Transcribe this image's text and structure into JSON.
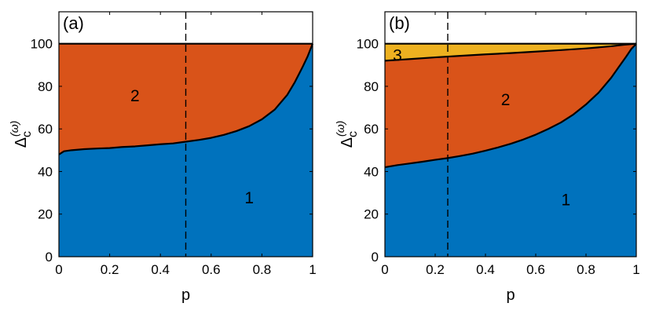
{
  "chart_data": [
    {
      "type": "area",
      "panel_label": "(a)",
      "xlabel": "p",
      "ylabel": "Δ",
      "ylabel_subscript": "c",
      "ylabel_superscript": "(ω)",
      "xlim": [
        0,
        1
      ],
      "ylim": [
        0,
        115
      ],
      "xticks": [
        "0",
        "0.2",
        "0.4",
        "0.6",
        "0.8",
        "1"
      ],
      "yticks": [
        "0",
        "20",
        "40",
        "60",
        "80",
        "100"
      ],
      "dashed_vline_x": 0.5,
      "colors": {
        "region1": "#0072BD",
        "region2": "#D95319",
        "region3": "#EDB120"
      },
      "regions": [
        {
          "name": "1",
          "label_at": [
            0.75,
            28
          ]
        },
        {
          "name": "2",
          "label_at": [
            0.3,
            76
          ]
        }
      ],
      "boundaries": [
        {
          "name": "1-2",
          "x": [
            0,
            0.02,
            0.05,
            0.1,
            0.15,
            0.2,
            0.25,
            0.3,
            0.35,
            0.4,
            0.45,
            0.5,
            0.55,
            0.6,
            0.65,
            0.7,
            0.75,
            0.8,
            0.85,
            0.9,
            0.93,
            0.96,
            0.98,
            1.0
          ],
          "y": [
            48,
            49.5,
            50,
            50.5,
            50.8,
            51,
            51.5,
            51.8,
            52.3,
            52.8,
            53.2,
            54,
            54.8,
            55.8,
            57.2,
            59,
            61.3,
            64.5,
            69,
            76,
            82,
            89,
            94,
            100
          ]
        },
        {
          "name": "2-top",
          "x": [
            0,
            1
          ],
          "y": [
            100,
            100
          ]
        }
      ]
    },
    {
      "type": "area",
      "panel_label": "(b)",
      "xlabel": "p",
      "ylabel": "Δ",
      "ylabel_subscript": "c",
      "ylabel_superscript": "(ω)",
      "xlim": [
        0,
        1
      ],
      "ylim": [
        0,
        115
      ],
      "xticks": [
        "0",
        "0.2",
        "0.4",
        "0.6",
        "0.8",
        "1"
      ],
      "yticks": [
        "0",
        "20",
        "40",
        "60",
        "80",
        "100"
      ],
      "dashed_vline_x": 0.25,
      "colors": {
        "region1": "#0072BD",
        "region2": "#D95319",
        "region3": "#EDB120"
      },
      "regions": [
        {
          "name": "1",
          "label_at": [
            0.72,
            27
          ]
        },
        {
          "name": "2",
          "label_at": [
            0.48,
            74
          ]
        },
        {
          "name": "3",
          "label_at": [
            0.05,
            95
          ]
        }
      ],
      "boundaries": [
        {
          "name": "1-2",
          "x": [
            0,
            0.05,
            0.1,
            0.15,
            0.2,
            0.25,
            0.3,
            0.35,
            0.4,
            0.45,
            0.5,
            0.55,
            0.6,
            0.65,
            0.7,
            0.75,
            0.8,
            0.85,
            0.9,
            0.93,
            0.96,
            0.98,
            1.0
          ],
          "y": [
            42,
            43,
            43.8,
            44.6,
            45.5,
            46.3,
            47.3,
            48.4,
            49.8,
            51.3,
            53,
            55,
            57.3,
            60,
            63,
            66.8,
            71.5,
            77,
            84,
            89,
            94,
            97.5,
            100
          ]
        },
        {
          "name": "2-3",
          "x": [
            0,
            0.1,
            0.2,
            0.3,
            0.4,
            0.5,
            0.6,
            0.7,
            0.8,
            0.9,
            0.95,
            1.0
          ],
          "y": [
            92,
            92.8,
            93.6,
            94.3,
            95,
            95.6,
            96.3,
            97,
            97.8,
            98.8,
            99.5,
            100
          ]
        },
        {
          "name": "3-top",
          "x": [
            0,
            1
          ],
          "y": [
            100,
            100
          ]
        }
      ]
    }
  ]
}
